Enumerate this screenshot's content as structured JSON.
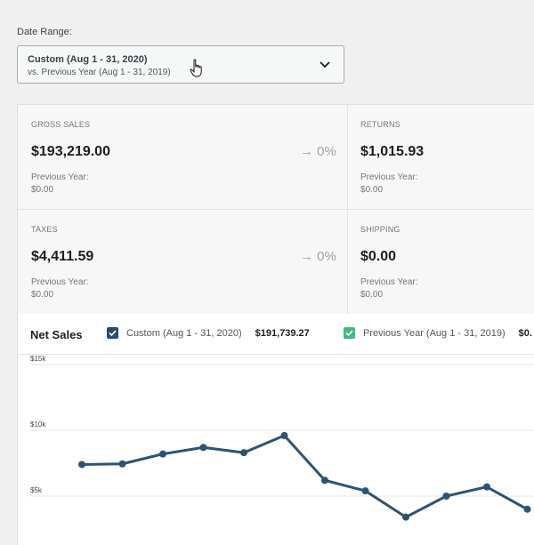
{
  "date_range": {
    "label": "Date Range:",
    "selected": "Custom (Aug 1 - 31, 2020)",
    "compare": "vs. Previous Year (Aug 1 - 31, 2019)"
  },
  "stats": [
    {
      "label": "GROSS SALES",
      "value": "$193,219.00",
      "delta": "0%",
      "prev_label": "Previous Year:",
      "prev_value": "$0.00"
    },
    {
      "label": "RETURNS",
      "value": "$1,015.93",
      "prev_label": "Previous Year:",
      "prev_value": "$0.00"
    },
    {
      "label": "TAXES",
      "value": "$4,411.59",
      "delta": "0%",
      "prev_label": "Previous Year:",
      "prev_value": "$0.00"
    },
    {
      "label": "SHIPPING",
      "value": "$0.00",
      "prev_label": "Previous Year:",
      "prev_value": "$0.00"
    }
  ],
  "chart_header": {
    "title": "Net Sales",
    "legend": [
      {
        "label": "Custom (Aug 1 - 31, 2020)",
        "total": "$191,739.27",
        "color": "#2c4a6e"
      },
      {
        "label": "Previous Year (Aug 1 - 31, 2019)",
        "total": "$0.",
        "color": "#3fb981"
      }
    ]
  },
  "colors": {
    "series": "#2f5273",
    "grid": "#e6e6e6",
    "axis_text": "#444444"
  },
  "chart_data": {
    "type": "line",
    "title": "Net Sales",
    "y_ticks": [
      "$15k",
      "$10k",
      "$5k"
    ],
    "y_tick_values": [
      15000,
      10000,
      5000
    ],
    "series": [
      {
        "name": "Custom (Aug 1 - 31, 2020)",
        "values": [
          7400,
          7450,
          8200,
          8700,
          8300,
          9600,
          6200,
          5400,
          3400,
          5000,
          5700,
          4000
        ]
      }
    ]
  }
}
